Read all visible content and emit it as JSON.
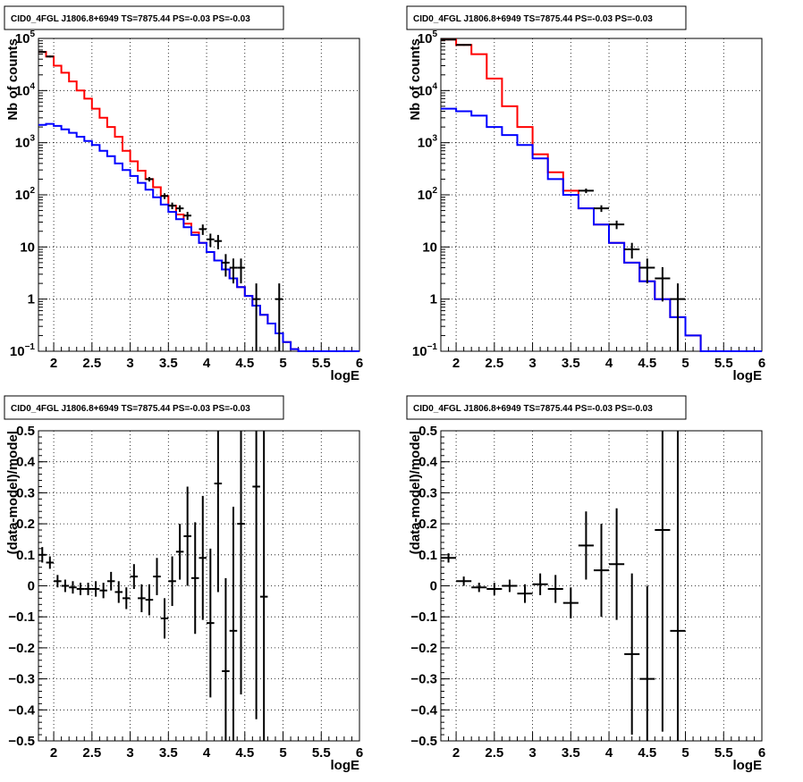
{
  "chart_data": [
    {
      "type": "line",
      "title": "CID0_4FGL J1806.8+6949 TS=7875.44 PS=-0.03 PS=-0.03",
      "xlabel": "logE",
      "ylabel": "Nb of counts",
      "log_y": true,
      "xlim": [
        1.8,
        6
      ],
      "ylim": [
        0.1,
        100000
      ],
      "grid": true,
      "x_ticks": [
        "2",
        "2.5",
        "3",
        "3.5",
        "4",
        "4.5",
        "5",
        "5.5",
        "6"
      ],
      "y_ticks": [
        {
          "v": 0.1,
          "text": "10",
          "sup": "−1"
        },
        {
          "v": 1,
          "text": "1",
          "sup": ""
        },
        {
          "v": 10,
          "text": "10",
          "sup": ""
        },
        {
          "v": 100,
          "text": "10",
          "sup": "2"
        },
        {
          "v": 1000,
          "text": "10",
          "sup": "3"
        },
        {
          "v": 10000,
          "text": "10",
          "sup": "4"
        },
        {
          "v": 100000,
          "text": "10",
          "sup": "5"
        }
      ],
      "bin_width": 0.1,
      "series": [
        {
          "color": "#ff0000",
          "x": [
            1.8,
            1.9,
            2.0,
            2.1,
            2.2,
            2.3,
            2.4,
            2.5,
            2.6,
            2.7,
            2.8,
            2.9,
            3.0,
            3.1,
            3.2,
            3.3,
            3.4,
            3.5,
            3.6,
            3.7,
            3.8,
            3.9,
            4.0,
            4.1,
            4.2,
            4.3,
            4.4,
            4.5,
            4.6,
            4.7,
            4.8,
            4.9,
            5.0,
            5.1,
            5.2,
            5.3,
            5.4,
            5.5,
            5.6,
            5.7,
            5.8,
            5.9
          ],
          "values": [
            55000,
            45000,
            30000,
            22000,
            15000,
            10000,
            7000,
            4500,
            3000,
            2000,
            1300,
            700,
            440,
            290,
            200,
            140,
            95,
            62,
            42,
            28,
            19,
            12,
            8,
            5.5,
            3.7,
            2.5,
            1.7,
            1.15,
            0.75,
            0.5,
            0.34,
            0.22,
            0.15,
            0.11,
            0.1,
            0.1,
            0.1,
            0.1,
            0.1,
            0.1,
            0.1,
            0.1
          ]
        },
        {
          "color": "#0000ff",
          "x": [
            1.8,
            1.9,
            2.0,
            2.1,
            2.2,
            2.3,
            2.4,
            2.5,
            2.6,
            2.7,
            2.8,
            2.9,
            3.0,
            3.1,
            3.2,
            3.3,
            3.4,
            3.5,
            3.6,
            3.7,
            3.8,
            3.9,
            4.0,
            4.1,
            4.2,
            4.3,
            4.4,
            4.5,
            4.6,
            4.7,
            4.8,
            4.9,
            5.0,
            5.1,
            5.2,
            5.3,
            5.4,
            5.5,
            5.6,
            5.7,
            5.8,
            5.9
          ],
          "values": [
            2200,
            2300,
            2100,
            1800,
            1550,
            1300,
            1080,
            900,
            700,
            550,
            400,
            300,
            230,
            170,
            125,
            90,
            65,
            47,
            34,
            24,
            17,
            12,
            8,
            5.5,
            3.7,
            2.5,
            1.7,
            1.15,
            0.75,
            0.5,
            0.34,
            0.22,
            0.15,
            0.11,
            0.1,
            0.1,
            0.1,
            0.1,
            0.1,
            0.1,
            0.1,
            0.1
          ]
        }
      ],
      "points": [
        {
          "x": 1.85,
          "y": 55000,
          "err": 2000
        },
        {
          "x": 1.95,
          "y": 45000,
          "err": 1800
        },
        {
          "x": 3.25,
          "y": 200,
          "err": 20
        },
        {
          "x": 3.45,
          "y": 95,
          "err": 12
        },
        {
          "x": 3.55,
          "y": 62,
          "err": 9
        },
        {
          "x": 3.65,
          "y": 55,
          "err": 8
        },
        {
          "x": 3.75,
          "y": 40,
          "err": 7
        },
        {
          "x": 3.95,
          "y": 22,
          "err": 5
        },
        {
          "x": 4.05,
          "y": 14,
          "err": 4
        },
        {
          "x": 4.15,
          "y": 13,
          "err": 4
        },
        {
          "x": 4.25,
          "y": 5,
          "err": 2.3
        },
        {
          "x": 4.35,
          "y": 4,
          "err": 2
        },
        {
          "x": 4.45,
          "y": 4,
          "err": 2
        },
        {
          "x": 4.65,
          "y": 1,
          "err": 1
        },
        {
          "x": 4.95,
          "y": 1,
          "err": 1
        }
      ]
    },
    {
      "type": "line",
      "title": "CID0_4FGL J1806.8+6949 TS=7875.44 PS=-0.03 PS=-0.03",
      "xlabel": "logE",
      "ylabel": "Nb of counts",
      "log_y": true,
      "xlim": [
        1.8,
        6
      ],
      "ylim": [
        0.1,
        100000
      ],
      "grid": true,
      "x_ticks": [
        "2",
        "2.5",
        "3",
        "3.5",
        "4",
        "4.5",
        "5",
        "5.5",
        "6"
      ],
      "y_ticks": [
        {
          "v": 0.1,
          "text": "10",
          "sup": "−1"
        },
        {
          "v": 1,
          "text": "1",
          "sup": ""
        },
        {
          "v": 10,
          "text": "10",
          "sup": ""
        },
        {
          "v": 100,
          "text": "10",
          "sup": "2"
        },
        {
          "v": 1000,
          "text": "10",
          "sup": "3"
        },
        {
          "v": 10000,
          "text": "10",
          "sup": "4"
        },
        {
          "v": 100000,
          "text": "10",
          "sup": "5"
        }
      ],
      "bin_width": 0.2,
      "series": [
        {
          "color": "#ff0000",
          "x": [
            1.8,
            2.0,
            2.2,
            2.4,
            2.6,
            2.8,
            3.0,
            3.2,
            3.4,
            3.6,
            3.8,
            4.0,
            4.2,
            4.4,
            4.6,
            4.8,
            5.0,
            5.2,
            5.4,
            5.6,
            5.8
          ],
          "values": [
            95000,
            75000,
            50000,
            17000,
            5000,
            2000,
            600,
            270,
            120,
            55,
            27,
            12,
            5,
            2.2,
            1,
            0.45,
            0.2,
            0.1,
            0.1,
            0.1,
            0.1
          ]
        },
        {
          "color": "#0000ff",
          "x": [
            1.8,
            2.0,
            2.2,
            2.4,
            2.6,
            2.8,
            3.0,
            3.2,
            3.4,
            3.6,
            3.8,
            4.0,
            4.2,
            4.4,
            4.6,
            4.8,
            5.0,
            5.2,
            5.4,
            5.6,
            5.8
          ],
          "values": [
            4500,
            4000,
            3300,
            2000,
            1400,
            900,
            500,
            200,
            100,
            55,
            27,
            12,
            5,
            2.2,
            1,
            0.45,
            0.2,
            0.1,
            0.1,
            0.1,
            0.1
          ]
        }
      ],
      "points": [
        {
          "x": 1.9,
          "y": 95000,
          "err": 3000
        },
        {
          "x": 2.1,
          "y": 75000,
          "err": 2500
        },
        {
          "x": 3.7,
          "y": 120,
          "err": 12
        },
        {
          "x": 3.9,
          "y": 55,
          "err": 8
        },
        {
          "x": 4.1,
          "y": 27,
          "err": 5
        },
        {
          "x": 4.3,
          "y": 9,
          "err": 3
        },
        {
          "x": 4.5,
          "y": 4,
          "err": 2
        },
        {
          "x": 4.7,
          "y": 2.5,
          "err": 1.6
        },
        {
          "x": 4.9,
          "y": 1,
          "err": 1
        }
      ]
    },
    {
      "type": "scatter",
      "title": "CID0_4FGL J1806.8+6949 TS=7875.44 PS=-0.03 PS=-0.03",
      "xlabel": "logE",
      "ylabel": "(data-model)/model",
      "log_y": false,
      "xlim": [
        1.8,
        6
      ],
      "ylim": [
        -0.5,
        0.5
      ],
      "grid": true,
      "x_ticks": [
        "2",
        "2.5",
        "3",
        "3.5",
        "4",
        "4.5",
        "5",
        "5.5",
        "6"
      ],
      "y_ticks": [
        {
          "v": 0.5,
          "text": "0.5"
        },
        {
          "v": 0.4,
          "text": "0.4"
        },
        {
          "v": 0.3,
          "text": "0.3"
        },
        {
          "v": 0.2,
          "text": "0.2"
        },
        {
          "v": 0.1,
          "text": "0.1"
        },
        {
          "v": 0,
          "text": "0"
        },
        {
          "v": -0.1,
          "text": "−0.1"
        },
        {
          "v": -0.2,
          "text": "−0.2"
        },
        {
          "v": -0.3,
          "text": "−0.3"
        },
        {
          "v": -0.4,
          "text": "−0.4"
        },
        {
          "v": -0.5,
          "text": "−0.5"
        }
      ],
      "bin_width": 0.1,
      "points": [
        {
          "x": 1.85,
          "y": 0.1,
          "err": 0.025
        },
        {
          "x": 1.95,
          "y": 0.075,
          "err": 0.02
        },
        {
          "x": 2.05,
          "y": 0.015,
          "err": 0.02
        },
        {
          "x": 2.15,
          "y": 0.0,
          "err": 0.02
        },
        {
          "x": 2.25,
          "y": -0.005,
          "err": 0.02
        },
        {
          "x": 2.35,
          "y": -0.01,
          "err": 0.02
        },
        {
          "x": 2.45,
          "y": -0.01,
          "err": 0.02
        },
        {
          "x": 2.55,
          "y": -0.01,
          "err": 0.025
        },
        {
          "x": 2.65,
          "y": -0.015,
          "err": 0.025
        },
        {
          "x": 2.75,
          "y": 0.015,
          "err": 0.03
        },
        {
          "x": 2.85,
          "y": -0.02,
          "err": 0.035
        },
        {
          "x": 2.95,
          "y": -0.04,
          "err": 0.035
        },
        {
          "x": 3.05,
          "y": 0.03,
          "err": 0.04
        },
        {
          "x": 3.15,
          "y": -0.04,
          "err": 0.045
        },
        {
          "x": 3.25,
          "y": -0.045,
          "err": 0.05
        },
        {
          "x": 3.35,
          "y": 0.03,
          "err": 0.06
        },
        {
          "x": 3.45,
          "y": -0.105,
          "err": 0.065
        },
        {
          "x": 3.55,
          "y": 0.015,
          "err": 0.08
        },
        {
          "x": 3.65,
          "y": 0.11,
          "err": 0.09
        },
        {
          "x": 3.75,
          "y": 0.16,
          "err": 0.16
        },
        {
          "x": 3.85,
          "y": 0.025,
          "err": 0.18
        },
        {
          "x": 3.95,
          "y": 0.09,
          "err": 0.2
        },
        {
          "x": 4.05,
          "y": -0.12,
          "err": 0.24
        },
        {
          "x": 4.15,
          "y": 0.33,
          "err": 0.35
        },
        {
          "x": 4.25,
          "y": -0.275,
          "err": 0.3
        },
        {
          "x": 4.35,
          "y": -0.145,
          "err": 0.4
        },
        {
          "x": 4.45,
          "y": 0.2,
          "err": 0.55
        },
        {
          "x": 4.65,
          "y": 0.32,
          "err": 0.75
        },
        {
          "x": 4.75,
          "y": -0.035,
          "err": 1.0
        }
      ]
    },
    {
      "type": "scatter",
      "title": "CID0_4FGL J1806.8+6949 TS=7875.44 PS=-0.03 PS=-0.03",
      "xlabel": "logE",
      "ylabel": "(data-model)/model",
      "log_y": false,
      "xlim": [
        1.8,
        6
      ],
      "ylim": [
        -0.5,
        0.5
      ],
      "grid": true,
      "x_ticks": [
        "2",
        "2.5",
        "3",
        "3.5",
        "4",
        "4.5",
        "5",
        "5.5",
        "6"
      ],
      "y_ticks": [
        {
          "v": 0.5,
          "text": "0.5"
        },
        {
          "v": 0.4,
          "text": "0.4"
        },
        {
          "v": 0.3,
          "text": "0.3"
        },
        {
          "v": 0.2,
          "text": "0.2"
        },
        {
          "v": 0.1,
          "text": "0.1"
        },
        {
          "v": 0,
          "text": "0"
        },
        {
          "v": -0.1,
          "text": "−0.1"
        },
        {
          "v": -0.2,
          "text": "−0.2"
        },
        {
          "v": -0.3,
          "text": "−0.3"
        },
        {
          "v": -0.4,
          "text": "−0.4"
        },
        {
          "v": -0.5,
          "text": "−0.5"
        }
      ],
      "bin_width": 0.2,
      "points": [
        {
          "x": 1.9,
          "y": 0.09,
          "err": 0.015
        },
        {
          "x": 2.1,
          "y": 0.015,
          "err": 0.015
        },
        {
          "x": 2.3,
          "y": -0.005,
          "err": 0.015
        },
        {
          "x": 2.5,
          "y": -0.01,
          "err": 0.02
        },
        {
          "x": 2.7,
          "y": 0.0,
          "err": 0.02
        },
        {
          "x": 2.9,
          "y": -0.025,
          "err": 0.03
        },
        {
          "x": 3.1,
          "y": 0.005,
          "err": 0.035
        },
        {
          "x": 3.3,
          "y": -0.01,
          "err": 0.045
        },
        {
          "x": 3.5,
          "y": -0.055,
          "err": 0.05
        },
        {
          "x": 3.7,
          "y": 0.13,
          "err": 0.11
        },
        {
          "x": 3.9,
          "y": 0.05,
          "err": 0.15
        },
        {
          "x": 4.1,
          "y": 0.07,
          "err": 0.18
        },
        {
          "x": 4.3,
          "y": -0.22,
          "err": 0.26
        },
        {
          "x": 4.5,
          "y": -0.3,
          "err": 0.3
        },
        {
          "x": 4.7,
          "y": 0.18,
          "err": 0.65
        },
        {
          "x": 4.9,
          "y": -0.145,
          "err": 0.9
        }
      ]
    }
  ]
}
